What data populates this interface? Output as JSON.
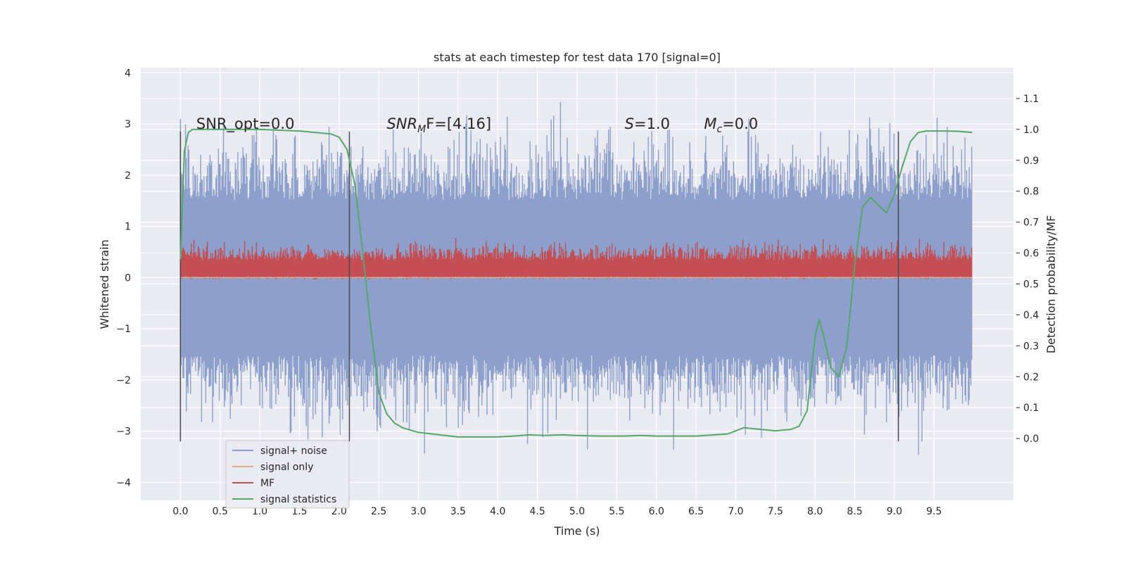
{
  "chart_data": {
    "type": "line",
    "title": "stats at each timestep for test data 170 [signal=0]",
    "xlabel": "Time (s)",
    "ylabel": "Whitened strain",
    "y2label": "Detection probability/MF",
    "xlim": [
      -0.5,
      10.5
    ],
    "ylim": [
      -4.35,
      4.1
    ],
    "y2lim": [
      -0.2,
      1.2
    ],
    "xticks": [
      0.0,
      0.5,
      1.0,
      1.5,
      2.0,
      2.5,
      3.0,
      3.5,
      4.0,
      4.5,
      5.0,
      5.5,
      6.0,
      6.5,
      7.0,
      7.5,
      8.0,
      8.5,
      9.0,
      9.5
    ],
    "xtick_labels": [
      "0.0",
      "0.5",
      "1.0",
      "1.5",
      "2.0",
      "2.5",
      "3.0",
      "3.5",
      "4.0",
      "4.5",
      "5.0",
      "5.5",
      "6.0",
      "6.5",
      "7.0",
      "7.5",
      "8.0",
      "8.5",
      "9.0",
      "9.5"
    ],
    "yticks": [
      4,
      3,
      2,
      1,
      0,
      -1,
      -2,
      -3,
      -4
    ],
    "ytick_labels": [
      "4",
      "3",
      "2",
      "1",
      "0",
      "−1",
      "−2",
      "−3",
      "−4"
    ],
    "y2ticks": [
      1.1,
      1.0,
      0.9,
      0.8,
      0.7,
      0.6,
      0.5,
      0.4,
      0.3,
      0.2,
      0.1,
      0.0
    ],
    "y2tick_labels": [
      "1.1",
      "1.0",
      "0.9",
      "0.8",
      "0.7",
      "0.6",
      "0.5",
      "0.4",
      "0.3",
      "0.2",
      "0.1",
      "0.0"
    ],
    "grid": true,
    "legend_position": "bottom-left",
    "annotations": [
      {
        "text": "SNR_opt=0.0",
        "x": 0.2,
        "y": 3.0
      },
      {
        "text": "SNR",
        "sub": "M",
        "rest": "F=[4.16]",
        "x": 2.6,
        "y": 3.0,
        "italic": true
      },
      {
        "text": "S",
        "rest": "=1.0",
        "x": 5.6,
        "y": 3.0,
        "italic": true
      },
      {
        "text": "M",
        "sub": "c",
        "rest": "=0.0",
        "x": 6.6,
        "y": 3.0,
        "italic": true
      }
    ],
    "window_markers_x": [
      0.0,
      2.13,
      9.05
    ],
    "window_markers_yrange": [
      -3.2,
      2.85
    ],
    "series": [
      {
        "name": "signal+ noise",
        "color": "#8da0cb",
        "kind": "noise-band",
        "x_range": [
          0.0,
          9.98
        ],
        "typical_range": [
          -1.9,
          1.9
        ],
        "extremes": [
          -4.1,
          3.7
        ]
      },
      {
        "name": "signal only",
        "color": "#e8a98a",
        "kind": "flat",
        "value": 0.0
      },
      {
        "name": "MF",
        "color": "#c44e52",
        "kind": "noise-band",
        "x_range": [
          0.0,
          9.98
        ],
        "typical_range": [
          0.0,
          0.62
        ],
        "extremes": [
          -0.05,
          1.0
        ]
      },
      {
        "name": "signal statistics",
        "color": "#55a868",
        "kind": "line",
        "axis": "right",
        "x": [
          0.0,
          0.05,
          0.1,
          0.15,
          0.25,
          0.5,
          1.0,
          1.5,
          1.9,
          2.0,
          2.1,
          2.2,
          2.3,
          2.4,
          2.5,
          2.6,
          2.7,
          2.8,
          3.0,
          3.5,
          4.0,
          4.2,
          4.4,
          4.6,
          4.8,
          5.0,
          5.3,
          5.6,
          5.8,
          6.0,
          6.5,
          6.9,
          7.1,
          7.3,
          7.5,
          7.7,
          7.8,
          7.9,
          8.0,
          8.05,
          8.1,
          8.2,
          8.3,
          8.4,
          8.5,
          8.6,
          8.7,
          8.8,
          8.9,
          9.0,
          9.1,
          9.2,
          9.3,
          9.4,
          9.6,
          9.8,
          9.98
        ],
        "y": [
          0.58,
          0.93,
          0.99,
          1.0,
          1.0,
          1.0,
          1.0,
          0.995,
          0.985,
          0.975,
          0.935,
          0.82,
          0.6,
          0.36,
          0.15,
          0.08,
          0.05,
          0.035,
          0.02,
          0.005,
          0.005,
          0.008,
          0.012,
          0.01,
          0.012,
          0.01,
          0.008,
          0.008,
          0.01,
          0.008,
          0.008,
          0.015,
          0.035,
          0.03,
          0.025,
          0.03,
          0.04,
          0.09,
          0.33,
          0.385,
          0.34,
          0.23,
          0.2,
          0.3,
          0.56,
          0.75,
          0.78,
          0.755,
          0.73,
          0.79,
          0.88,
          0.96,
          0.99,
          0.995,
          0.995,
          0.994,
          0.99
        ]
      }
    ]
  }
}
